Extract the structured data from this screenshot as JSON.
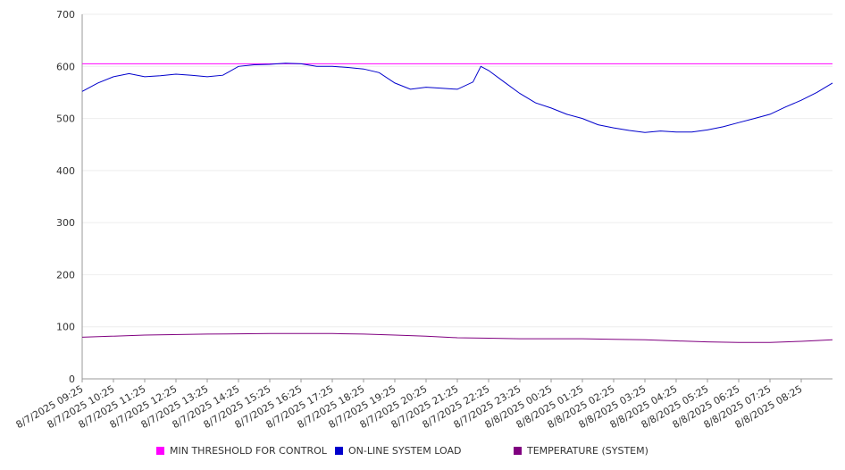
{
  "chart_data": {
    "type": "line",
    "title": "",
    "xlabel": "",
    "ylabel": "",
    "ylim": [
      0,
      700
    ],
    "yticks": [
      0,
      100,
      200,
      300,
      400,
      500,
      600,
      700
    ],
    "grid": true,
    "legend_position": "bottom",
    "x_tick_labels": [
      "8/7/2025 09:25",
      "8/7/2025 10:25",
      "8/7/2025 11:25",
      "8/7/2025 12:25",
      "8/7/2025 13:25",
      "8/7/2025 14:25",
      "8/7/2025 15:25",
      "8/7/2025 16:25",
      "8/7/2025 17:25",
      "8/7/2025 18:25",
      "8/7/2025 19:25",
      "8/7/2025 20:25",
      "8/7/2025 21:25",
      "8/7/2025 22:25",
      "8/7/2025 23:25",
      "8/8/2025 00:25",
      "8/8/2025 01:25",
      "8/8/2025 02:25",
      "8/8/2025 03:25",
      "8/8/2025 04:25",
      "8/8/2025 05:25",
      "8/8/2025 06:25",
      "8/8/2025 07:25",
      "8/8/2025 08:25"
    ],
    "x_range": [
      "8/7/2025 09:25",
      "8/8/2025 09:25"
    ],
    "series": [
      {
        "name": "MIN THRESHOLD FOR CONTROL",
        "color": "#ff00ff",
        "x": [
          "8/7/2025 09:25",
          "8/8/2025 09:25"
        ],
        "values": [
          605,
          605
        ]
      },
      {
        "name": "ON-LINE SYSTEM LOAD",
        "color": "#0000cc",
        "x": [
          "8/7/2025 09:25",
          "8/7/2025 09:55",
          "8/7/2025 10:25",
          "8/7/2025 10:55",
          "8/7/2025 11:25",
          "8/7/2025 11:55",
          "8/7/2025 12:25",
          "8/7/2025 12:55",
          "8/7/2025 13:25",
          "8/7/2025 13:55",
          "8/7/2025 14:25",
          "8/7/2025 14:55",
          "8/7/2025 15:25",
          "8/7/2025 15:55",
          "8/7/2025 16:25",
          "8/7/2025 16:55",
          "8/7/2025 17:25",
          "8/7/2025 17:55",
          "8/7/2025 18:25",
          "8/7/2025 18:55",
          "8/7/2025 19:25",
          "8/7/2025 19:55",
          "8/7/2025 20:25",
          "8/7/2025 20:55",
          "8/7/2025 21:25",
          "8/7/2025 21:55",
          "8/7/2025 22:10",
          "8/7/2025 22:25",
          "8/7/2025 22:55",
          "8/7/2025 23:25",
          "8/7/2025 23:55",
          "8/8/2025 00:25",
          "8/8/2025 00:55",
          "8/8/2025 01:25",
          "8/8/2025 01:55",
          "8/8/2025 02:25",
          "8/8/2025 02:55",
          "8/8/2025 03:25",
          "8/8/2025 03:55",
          "8/8/2025 04:25",
          "8/8/2025 04:55",
          "8/8/2025 05:25",
          "8/8/2025 05:55",
          "8/8/2025 06:25",
          "8/8/2025 06:55",
          "8/8/2025 07:25",
          "8/8/2025 07:55",
          "8/8/2025 08:25",
          "8/8/2025 08:55",
          "8/8/2025 09:25"
        ],
        "values": [
          552,
          568,
          580,
          586,
          580,
          582,
          585,
          583,
          580,
          583,
          600,
          603,
          604,
          606,
          605,
          600,
          600,
          598,
          595,
          588,
          568,
          556,
          560,
          558,
          556,
          570,
          600,
          592,
          570,
          548,
          530,
          520,
          508,
          500,
          488,
          482,
          477,
          473,
          476,
          474,
          474,
          478,
          484,
          492,
          500,
          508,
          522,
          535,
          550,
          568
        ]
      },
      {
        "name": "TEMPERATURE (SYSTEM)",
        "color": "#800080",
        "x": [
          "8/7/2025 09:25",
          "8/7/2025 11:25",
          "8/7/2025 13:25",
          "8/7/2025 15:25",
          "8/7/2025 17:25",
          "8/7/2025 18:25",
          "8/7/2025 19:25",
          "8/7/2025 20:25",
          "8/7/2025 21:25",
          "8/7/2025 22:25",
          "8/7/2025 23:25",
          "8/8/2025 01:25",
          "8/8/2025 02:25",
          "8/8/2025 03:25",
          "8/8/2025 04:25",
          "8/8/2025 05:25",
          "8/8/2025 06:25",
          "8/8/2025 07:25",
          "8/8/2025 08:25",
          "8/8/2025 09:25"
        ],
        "values": [
          80,
          84,
          86,
          87,
          87,
          86,
          84,
          82,
          79,
          78,
          77,
          77,
          76,
          75,
          73,
          71,
          70,
          70,
          72,
          75
        ]
      }
    ]
  }
}
